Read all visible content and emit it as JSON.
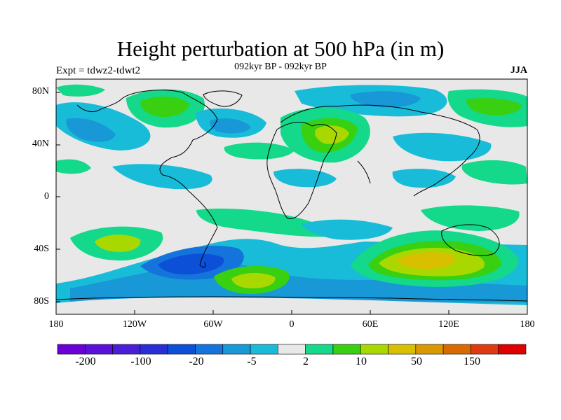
{
  "title": "Height perturbation at 500 hPa (in m)",
  "subtitle": "092kyr BP - 092kyr BP",
  "left_label": "Expt = tdwz2-tdwt2",
  "right_label": "JJA",
  "lat_ticks": [
    "80N",
    "40N",
    "0",
    "40S",
    "80S"
  ],
  "lon_ticks": [
    "180",
    "120W",
    "60W",
    "0",
    "60E",
    "120E",
    "180"
  ],
  "colorbar": {
    "colors": [
      "#6a00d8",
      "#5a10d8",
      "#4a1ed8",
      "#2a2ed8",
      "#0c50d8",
      "#1474dc",
      "#1898d6",
      "#18bcd8",
      "#e8e8e8",
      "#14d88a",
      "#38d010",
      "#a8d800",
      "#d8c000",
      "#d89a00",
      "#d86a00",
      "#e03a10",
      "#e00000"
    ],
    "labels": [
      "-200",
      "-100",
      "-20",
      "-5",
      "2",
      "10",
      "50",
      "150"
    ]
  },
  "colors": {
    "ocean": "#e8e8e8",
    "coast": "#000000"
  }
}
